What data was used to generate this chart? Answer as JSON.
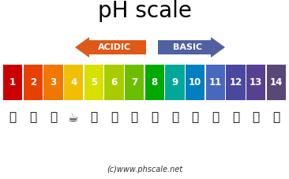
{
  "title": "pH scale",
  "copyright_text": "(c)www.phscale.net",
  "bar_colors": [
    "#cc0000",
    "#e84000",
    "#f07800",
    "#f0c000",
    "#d8e000",
    "#a8cc00",
    "#6cbf00",
    "#00aa00",
    "#00a898",
    "#0080c0",
    "#4868c0",
    "#4848a0",
    "#584090",
    "#584878"
  ],
  "ph_labels": [
    "1",
    "2",
    "3",
    "4",
    "5",
    "6",
    "7",
    "8",
    "9",
    "10",
    "11",
    "12",
    "13",
    "14"
  ],
  "acidic_color": "#e05818",
  "basic_color": "#5060a0",
  "background_color": "#ffffff",
  "acidic_text": "ACIDIC",
  "basic_text": "BASIC"
}
